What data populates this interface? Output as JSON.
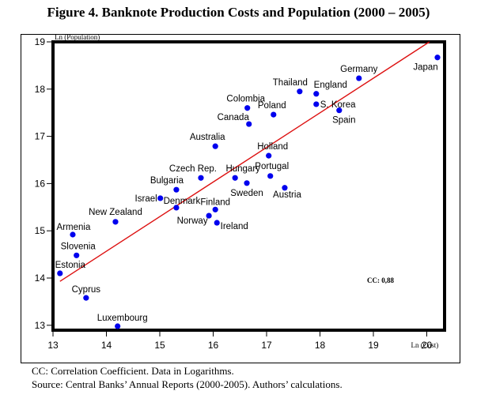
{
  "chart_data": {
    "type": "scatter",
    "title": "Figure 4. Banknote Production Costs and Population (2000 – 2005)",
    "xlabel": "Ln (Cost)",
    "ylabel": "Ln (Population)",
    "xlim": [
      13,
      20.33
    ],
    "ylim": [
      12.9,
      19
    ],
    "xticks": [
      13,
      14,
      15,
      16,
      17,
      18,
      19,
      20
    ],
    "yticks": [
      13,
      14,
      15,
      16,
      17,
      18,
      19
    ],
    "grid": false,
    "legend": "none",
    "point_color": "#0000ee",
    "trend_color": "#dd1111",
    "points": [
      {
        "label": "Japan",
        "x": 20.2,
        "y": 18.67,
        "label_pos": "below-left"
      },
      {
        "label": "Germany",
        "x": 18.73,
        "y": 18.23,
        "label_pos": "above"
      },
      {
        "label": "Thailand",
        "x": 17.62,
        "y": 17.95,
        "label_pos": "above-left"
      },
      {
        "label": "England",
        "x": 17.93,
        "y": 17.9,
        "label_pos": "above-right"
      },
      {
        "label": "S. Korea",
        "x": 17.93,
        "y": 17.68,
        "label_pos": "right"
      },
      {
        "label": "Spain",
        "x": 18.36,
        "y": 17.55,
        "label_pos": "below"
      },
      {
        "label": "Colombia",
        "x": 16.64,
        "y": 17.6,
        "label_pos": "above"
      },
      {
        "label": "Poland",
        "x": 17.13,
        "y": 17.46,
        "label_pos": "above"
      },
      {
        "label": "Canada",
        "x": 16.67,
        "y": 17.26,
        "label_pos": "above-left"
      },
      {
        "label": "Australia",
        "x": 16.04,
        "y": 16.79,
        "label_pos": "above"
      },
      {
        "label": "Holland",
        "x": 17.04,
        "y": 16.59,
        "label_pos": "above"
      },
      {
        "label": "Czech Rep.",
        "x": 15.77,
        "y": 16.12,
        "label_pos": "above-left"
      },
      {
        "label": "Hungary",
        "x": 16.41,
        "y": 16.12,
        "label_pos": "above"
      },
      {
        "label": "Portugal",
        "x": 17.07,
        "y": 16.16,
        "label_pos": "above"
      },
      {
        "label": "Sweden",
        "x": 16.63,
        "y": 16.01,
        "label_pos": "below"
      },
      {
        "label": "Austria",
        "x": 17.34,
        "y": 15.91,
        "label_pos": "below"
      },
      {
        "label": "Bulgaria",
        "x": 15.31,
        "y": 15.87,
        "label_pos": "above-left"
      },
      {
        "label": "Israel",
        "x": 15.01,
        "y": 15.69,
        "label_pos": "left"
      },
      {
        "label": "Denmark",
        "x": 15.31,
        "y": 15.49,
        "label_pos": "above-right"
      },
      {
        "label": "Finland",
        "x": 16.04,
        "y": 15.45,
        "label_pos": "above"
      },
      {
        "label": "Norway",
        "x": 15.92,
        "y": 15.32,
        "label_pos": "below-left"
      },
      {
        "label": "Ireland",
        "x": 16.07,
        "y": 15.17,
        "label_pos": "below-right"
      },
      {
        "label": "New Zealand",
        "x": 14.17,
        "y": 15.19,
        "label_pos": "above"
      },
      {
        "label": "Armenia",
        "x": 13.37,
        "y": 14.92,
        "label_pos": "above"
      },
      {
        "label": "Slovenia",
        "x": 13.44,
        "y": 14.48,
        "label_pos": "above"
      },
      {
        "label": "Estonia",
        "x": 13.13,
        "y": 14.1,
        "label_pos": "above"
      },
      {
        "label": "Cyprus",
        "x": 13.62,
        "y": 13.58,
        "label_pos": "above"
      },
      {
        "label": "Luxembourg",
        "x": 14.21,
        "y": 12.98,
        "label_pos": "above"
      }
    ],
    "trend_line": {
      "x1": 13.13,
      "y1": 13.93,
      "x2": 20.05,
      "y2": 19.0
    },
    "annotations": [
      {
        "text": "CC: 0,88",
        "x": 19.0,
        "y": 13.95
      }
    ]
  },
  "footnotes": {
    "line1": "CC: Correlation Coefficient. Data in Logarithms.",
    "line2": "Source: Central Banks’ Annual Reports (2000-2005). Authors’ calculations."
  }
}
